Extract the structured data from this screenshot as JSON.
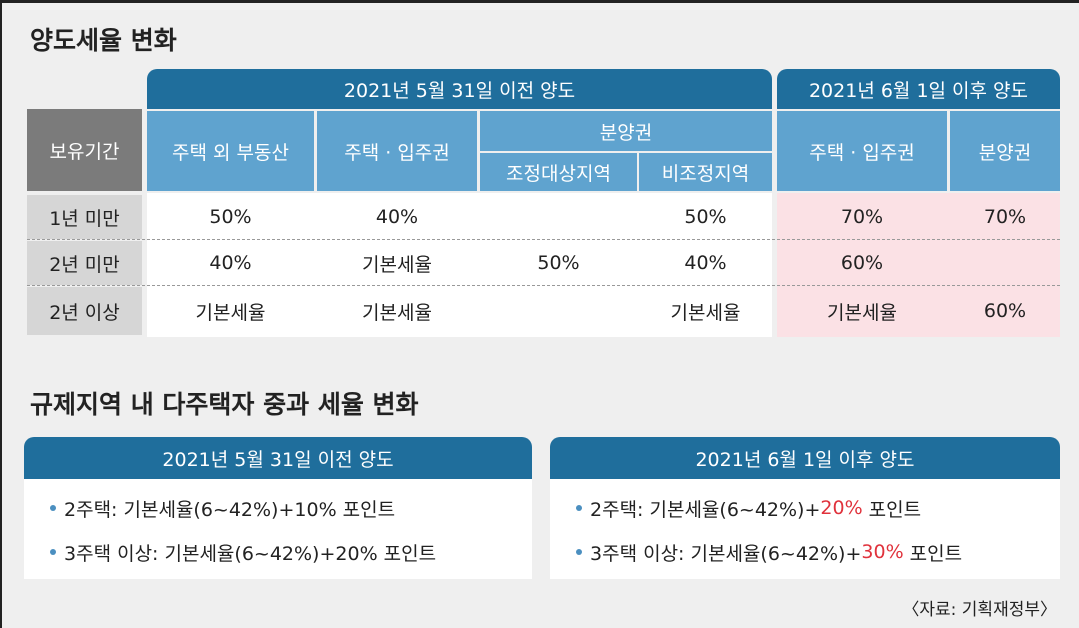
{
  "title": "양도세율 변화",
  "table": {
    "header": {
      "before": "2021년 5월 31일 이전 양도",
      "after": "2021년 6월 1일 이후 양도",
      "period": "보유기간",
      "columns": [
        "주택 외 부동산",
        "주택 · 입주권",
        "분양권",
        "주택 · 입주권",
        "분양권"
      ],
      "subcolumns": [
        "조정대상지역",
        "비조정지역"
      ]
    },
    "rows": [
      {
        "label": "1년 미만",
        "cells": [
          "50%",
          "40%",
          null,
          "50%",
          "70%",
          "70%"
        ]
      },
      {
        "label": "2년 미만",
        "cells": [
          "40%",
          "기본세율",
          "50%",
          "40%",
          "60%",
          null
        ]
      },
      {
        "label": "2년 이상",
        "cells": [
          "기본세율",
          "기본세율",
          null,
          "기본세율",
          "기본세율",
          "60%"
        ]
      }
    ]
  },
  "section2": {
    "title": "규제지역 내 다주택자 중과 세율 변화",
    "before": {
      "title": "2021년 5월 31일 이전 양도",
      "items": [
        "2주택: 기본세율(6~42%)+10% 포인트",
        "3주택 이상: 기본세율(6~42%)+20% 포인트"
      ]
    },
    "after": {
      "title": "2021년 6월 1일 이후 양도",
      "items": [
        {
          "prefix": "2주택: 기본세율(6~42%)+",
          "highlight": "20%",
          "suffix": " 포인트"
        },
        {
          "prefix": "3주택 이상: 기본세율(6~42%)+",
          "highlight": "30%",
          "suffix": " 포인트"
        }
      ]
    }
  },
  "source": "〈자료: 기획재정부〉"
}
